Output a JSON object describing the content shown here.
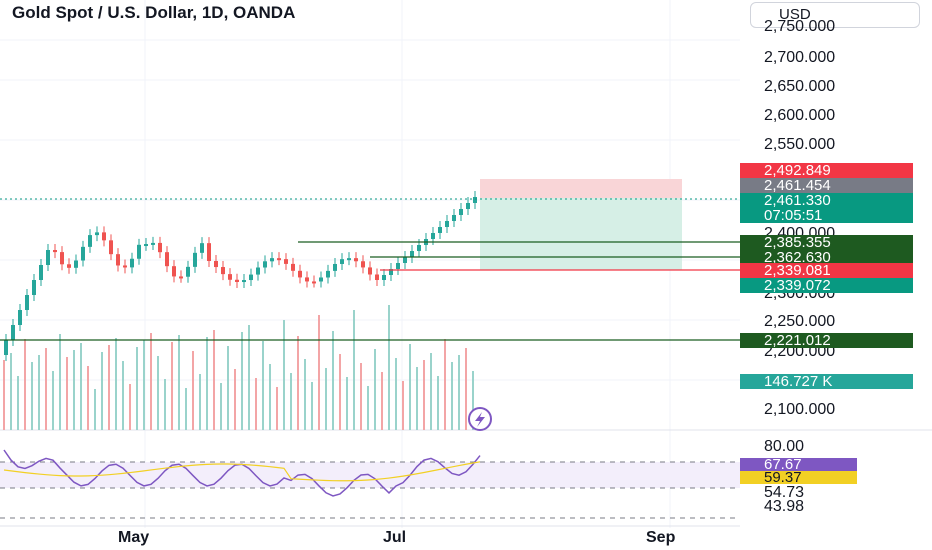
{
  "header": {
    "title": "Gold Spot / U.S. Dollar, 1D, OANDA",
    "currency": "USD"
  },
  "price_axis": {
    "labels": [
      "2,750.000",
      "2,700.000",
      "2,650.000",
      "2,600.000",
      "2,550.000",
      "2,400.000",
      "2,300.000",
      "2,250.000",
      "2,200.000",
      "2,100.000"
    ]
  },
  "price_tags": {
    "stop_loss": "2,492.849",
    "previous_close": "2,461.454",
    "last_price": "2,461.330",
    "countdown": "07:05:51",
    "level_a": "2,385.355",
    "level_b": "2,362.630",
    "entry": "2,339.081",
    "take_profit": "2,339.072",
    "level_c": "2,221.012",
    "volume": "146.727 K"
  },
  "rsi_axis": {
    "labels": [
      "80.00",
      "54.73",
      "43.98"
    ],
    "rsi_value": "67.67",
    "rsi_ma_value": "59.37"
  },
  "time_axis": {
    "labels": [
      "May",
      "Jul",
      "Sep"
    ]
  },
  "colors": {
    "up": "#26a69a",
    "down": "#ef5350",
    "support_line": "#1b5e20",
    "rsi": "#7e57c2",
    "rsi_ma": "#f2d024",
    "stop_zone": "#f9d5d7",
    "target_zone": "#d6efe6"
  },
  "icons": {
    "flash": "lightning-bolt-icon"
  }
}
